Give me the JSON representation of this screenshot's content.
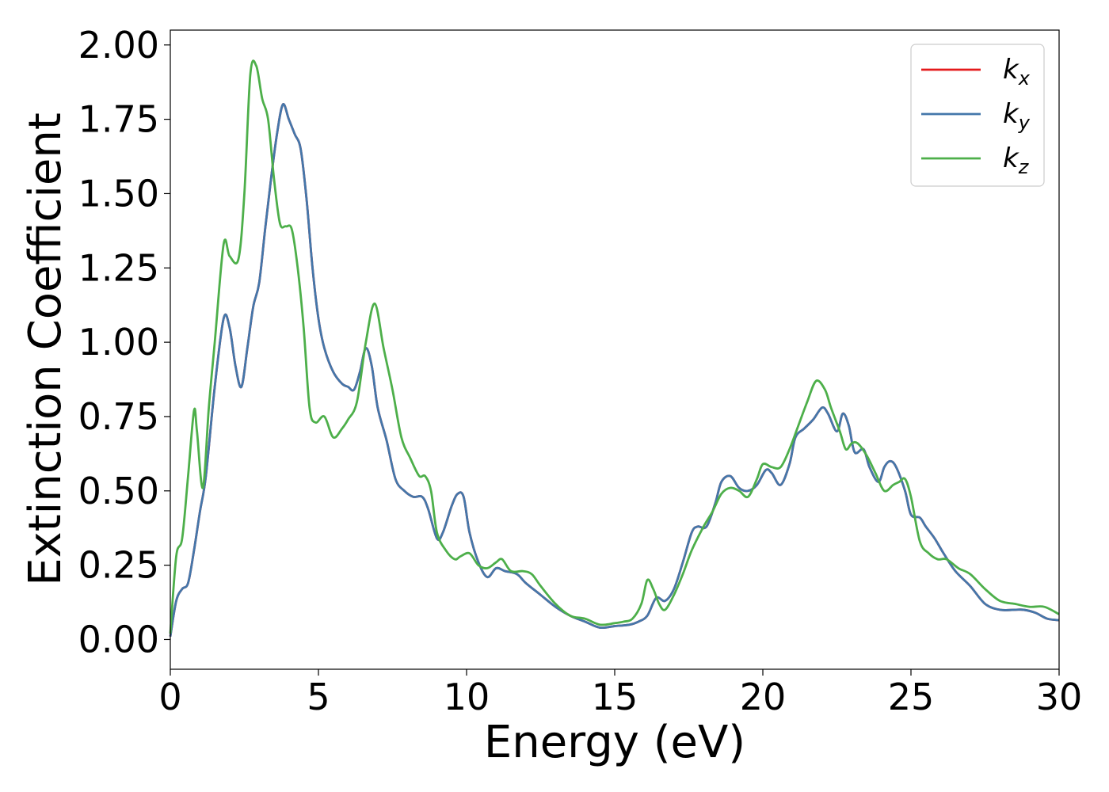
{
  "chart_data": {
    "type": "line",
    "title": "",
    "xlabel": "Energy (eV)",
    "ylabel": "Extinction Coefficient",
    "xlim": [
      0,
      30
    ],
    "ylim": [
      -0.1,
      2.05
    ],
    "xticks": [
      0,
      5,
      10,
      15,
      20,
      25,
      30
    ],
    "xtick_labels": [
      "0",
      "5",
      "10",
      "15",
      "20",
      "25",
      "30"
    ],
    "yticks": [
      0.0,
      0.25,
      0.5,
      0.75,
      1.0,
      1.25,
      1.5,
      1.75,
      2.0
    ],
    "ytick_labels": [
      "0.00",
      "0.25",
      "0.50",
      "0.75",
      "1.00",
      "1.25",
      "1.50",
      "1.75",
      "2.00"
    ],
    "grid": false,
    "legend_position": "top-right",
    "series": [
      {
        "name": "k_x",
        "label_base": "k",
        "label_sub": "x",
        "color": "#e41a1c",
        "x": [
          0,
          0.2,
          0.4,
          0.6,
          0.8,
          1.0,
          1.2,
          1.5,
          1.8,
          2.0,
          2.2,
          2.4,
          2.6,
          2.8,
          3.0,
          3.2,
          3.4,
          3.6,
          3.8,
          4.0,
          4.2,
          4.4,
          4.6,
          4.8,
          5.0,
          5.2,
          5.5,
          5.8,
          6.0,
          6.2,
          6.4,
          6.6,
          6.8,
          7.0,
          7.3,
          7.6,
          7.9,
          8.2,
          8.5,
          8.7,
          9.0,
          9.2,
          9.5,
          9.7,
          9.9,
          10.1,
          10.4,
          10.7,
          11.0,
          11.3,
          11.7,
          12.0,
          12.5,
          13.0,
          13.5,
          14.0,
          14.5,
          15.0,
          15.5,
          15.8,
          16.1,
          16.4,
          16.7,
          17.0,
          17.3,
          17.6,
          17.8,
          18.1,
          18.4,
          18.6,
          18.9,
          19.2,
          19.5,
          19.8,
          20.1,
          20.3,
          20.6,
          20.9,
          21.1,
          21.4,
          21.7,
          22.0,
          22.2,
          22.5,
          22.7,
          22.9,
          23.1,
          23.4,
          23.6,
          23.9,
          24.1,
          24.3,
          24.5,
          24.8,
          25.0,
          25.3,
          25.5,
          25.8,
          26.1,
          26.5,
          27.0,
          27.5,
          28.0,
          28.5,
          28.8,
          29.2,
          29.6,
          30.0
        ],
        "y": [
          0.01,
          0.13,
          0.17,
          0.19,
          0.3,
          0.43,
          0.55,
          0.85,
          1.08,
          1.05,
          0.92,
          0.85,
          0.98,
          1.12,
          1.2,
          1.38,
          1.55,
          1.7,
          1.8,
          1.75,
          1.7,
          1.65,
          1.48,
          1.25,
          1.08,
          0.98,
          0.9,
          0.86,
          0.85,
          0.84,
          0.9,
          0.98,
          0.92,
          0.78,
          0.67,
          0.54,
          0.5,
          0.48,
          0.48,
          0.44,
          0.34,
          0.36,
          0.45,
          0.49,
          0.48,
          0.36,
          0.26,
          0.21,
          0.24,
          0.23,
          0.22,
          0.19,
          0.15,
          0.11,
          0.08,
          0.06,
          0.04,
          0.045,
          0.05,
          0.06,
          0.08,
          0.14,
          0.13,
          0.17,
          0.26,
          0.36,
          0.38,
          0.38,
          0.46,
          0.53,
          0.55,
          0.51,
          0.5,
          0.52,
          0.57,
          0.56,
          0.52,
          0.59,
          0.68,
          0.71,
          0.74,
          0.78,
          0.76,
          0.7,
          0.76,
          0.72,
          0.63,
          0.64,
          0.58,
          0.53,
          0.58,
          0.6,
          0.58,
          0.5,
          0.42,
          0.41,
          0.38,
          0.34,
          0.29,
          0.23,
          0.18,
          0.12,
          0.1,
          0.1,
          0.1,
          0.09,
          0.07,
          0.065
        ]
      },
      {
        "name": "k_y",
        "label_base": "k",
        "label_sub": "y",
        "color": "#4477aa",
        "x": [
          0,
          0.2,
          0.4,
          0.6,
          0.8,
          1.0,
          1.2,
          1.5,
          1.8,
          2.0,
          2.2,
          2.4,
          2.6,
          2.8,
          3.0,
          3.2,
          3.4,
          3.6,
          3.8,
          4.0,
          4.2,
          4.4,
          4.6,
          4.8,
          5.0,
          5.2,
          5.5,
          5.8,
          6.0,
          6.2,
          6.4,
          6.6,
          6.8,
          7.0,
          7.3,
          7.6,
          7.9,
          8.2,
          8.5,
          8.7,
          9.0,
          9.2,
          9.5,
          9.7,
          9.9,
          10.1,
          10.4,
          10.7,
          11.0,
          11.3,
          11.7,
          12.0,
          12.5,
          13.0,
          13.5,
          14.0,
          14.5,
          15.0,
          15.5,
          15.8,
          16.1,
          16.4,
          16.7,
          17.0,
          17.3,
          17.6,
          17.8,
          18.1,
          18.4,
          18.6,
          18.9,
          19.2,
          19.5,
          19.8,
          20.1,
          20.3,
          20.6,
          20.9,
          21.1,
          21.4,
          21.7,
          22.0,
          22.2,
          22.5,
          22.7,
          22.9,
          23.1,
          23.4,
          23.6,
          23.9,
          24.1,
          24.3,
          24.5,
          24.8,
          25.0,
          25.3,
          25.5,
          25.8,
          26.1,
          26.5,
          27.0,
          27.5,
          28.0,
          28.5,
          28.8,
          29.2,
          29.6,
          30.0
        ],
        "y": [
          0.01,
          0.13,
          0.17,
          0.19,
          0.3,
          0.43,
          0.55,
          0.85,
          1.08,
          1.05,
          0.92,
          0.85,
          0.98,
          1.12,
          1.2,
          1.38,
          1.55,
          1.7,
          1.8,
          1.75,
          1.7,
          1.65,
          1.48,
          1.25,
          1.08,
          0.98,
          0.9,
          0.86,
          0.85,
          0.84,
          0.9,
          0.98,
          0.92,
          0.78,
          0.67,
          0.54,
          0.5,
          0.48,
          0.48,
          0.44,
          0.34,
          0.36,
          0.45,
          0.49,
          0.48,
          0.36,
          0.26,
          0.21,
          0.24,
          0.23,
          0.22,
          0.19,
          0.15,
          0.11,
          0.08,
          0.06,
          0.04,
          0.045,
          0.05,
          0.06,
          0.08,
          0.14,
          0.13,
          0.17,
          0.26,
          0.36,
          0.38,
          0.38,
          0.46,
          0.53,
          0.55,
          0.51,
          0.5,
          0.52,
          0.57,
          0.56,
          0.52,
          0.59,
          0.68,
          0.71,
          0.74,
          0.78,
          0.76,
          0.7,
          0.76,
          0.72,
          0.63,
          0.64,
          0.58,
          0.53,
          0.58,
          0.6,
          0.58,
          0.5,
          0.42,
          0.41,
          0.38,
          0.34,
          0.29,
          0.23,
          0.18,
          0.12,
          0.1,
          0.1,
          0.1,
          0.09,
          0.07,
          0.065
        ]
      },
      {
        "name": "k_z",
        "label_base": "k",
        "label_sub": "z",
        "color": "#4daf4a",
        "x": [
          0,
          0.2,
          0.4,
          0.6,
          0.8,
          0.9,
          1.1,
          1.3,
          1.5,
          1.8,
          2.0,
          2.3,
          2.5,
          2.7,
          2.9,
          3.1,
          3.3,
          3.5,
          3.7,
          3.9,
          4.1,
          4.3,
          4.5,
          4.7,
          4.9,
          5.2,
          5.5,
          5.8,
          6.0,
          6.3,
          6.6,
          6.9,
          7.2,
          7.5,
          7.8,
          8.1,
          8.4,
          8.6,
          8.8,
          9.0,
          9.3,
          9.6,
          9.8,
          10.1,
          10.4,
          10.7,
          11.0,
          11.2,
          11.5,
          11.9,
          12.2,
          12.5,
          13.0,
          13.5,
          14.0,
          14.5,
          15.0,
          15.3,
          15.6,
          15.9,
          16.1,
          16.3,
          16.5,
          16.7,
          17.0,
          17.3,
          17.6,
          18.0,
          18.3,
          18.6,
          18.9,
          19.2,
          19.5,
          19.8,
          20.0,
          20.3,
          20.6,
          20.9,
          21.2,
          21.5,
          21.8,
          22.1,
          22.3,
          22.6,
          22.8,
          23.0,
          23.2,
          23.5,
          23.8,
          24.1,
          24.4,
          24.6,
          24.8,
          25.0,
          25.3,
          25.6,
          25.9,
          26.2,
          26.6,
          27.0,
          27.5,
          28.0,
          28.5,
          29.0,
          29.5,
          30.0
        ],
        "y": [
          0.02,
          0.28,
          0.34,
          0.55,
          0.77,
          0.7,
          0.51,
          0.78,
          1.0,
          1.33,
          1.29,
          1.28,
          1.5,
          1.9,
          1.93,
          1.82,
          1.75,
          1.55,
          1.4,
          1.39,
          1.38,
          1.25,
          1.05,
          0.78,
          0.73,
          0.75,
          0.68,
          0.71,
          0.74,
          0.8,
          1.0,
          1.13,
          0.98,
          0.84,
          0.68,
          0.61,
          0.55,
          0.55,
          0.5,
          0.36,
          0.3,
          0.27,
          0.28,
          0.29,
          0.25,
          0.24,
          0.26,
          0.27,
          0.23,
          0.23,
          0.22,
          0.18,
          0.12,
          0.08,
          0.07,
          0.05,
          0.055,
          0.06,
          0.07,
          0.12,
          0.2,
          0.17,
          0.12,
          0.1,
          0.15,
          0.22,
          0.3,
          0.38,
          0.43,
          0.49,
          0.51,
          0.5,
          0.48,
          0.54,
          0.59,
          0.58,
          0.58,
          0.64,
          0.72,
          0.8,
          0.87,
          0.84,
          0.78,
          0.7,
          0.64,
          0.66,
          0.66,
          0.62,
          0.56,
          0.5,
          0.52,
          0.53,
          0.54,
          0.48,
          0.33,
          0.29,
          0.27,
          0.27,
          0.24,
          0.22,
          0.17,
          0.13,
          0.12,
          0.11,
          0.11,
          0.085
        ]
      }
    ]
  }
}
